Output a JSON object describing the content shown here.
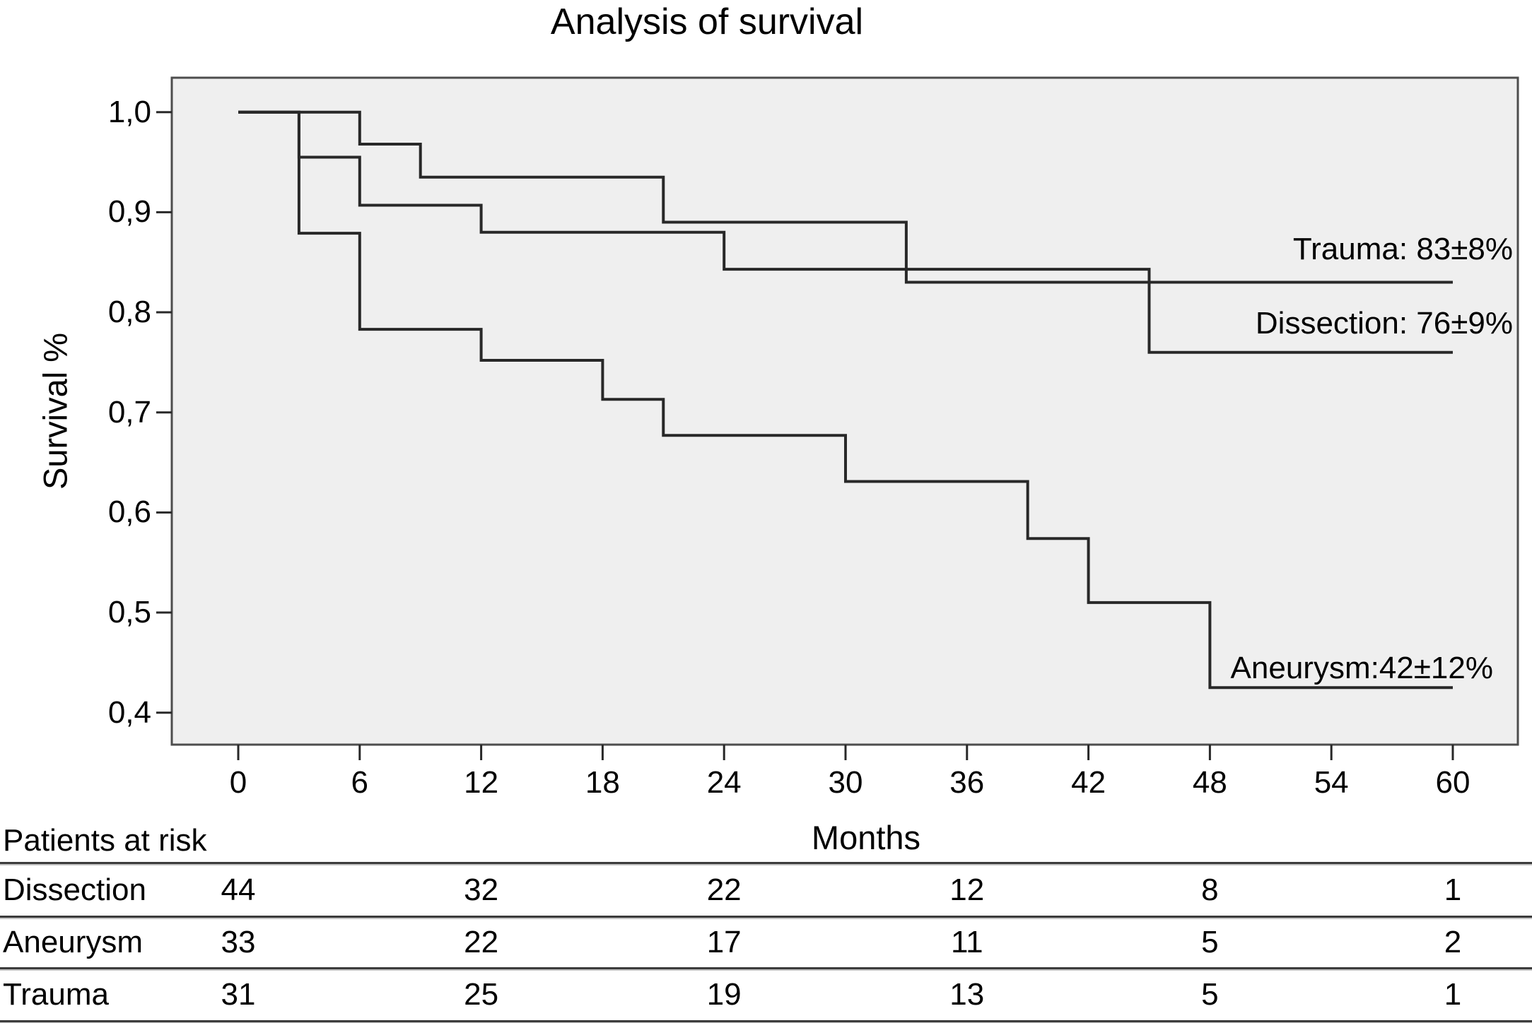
{
  "figure": {
    "title": "Analysis of survival"
  },
  "chart_data": {
    "type": "line",
    "variant": "kaplan_meier_step",
    "title": "Analysis of survival",
    "xlabel": "Months",
    "ylabel": "Survival %",
    "x_ticks": [
      0,
      6,
      12,
      18,
      24,
      30,
      36,
      42,
      48,
      54,
      60
    ],
    "y_tick_labels": [
      "1,0",
      "0,9",
      "0,8",
      "0,7",
      "0,6",
      "0,5",
      "0,4"
    ],
    "y_tick_values": [
      1.0,
      0.9,
      0.8,
      0.7,
      0.6,
      0.5,
      0.4
    ],
    "xlim": [
      -3.3,
      63.2
    ],
    "ylim": [
      0.366,
      1.034
    ],
    "grid": false,
    "legend_position": "inline-right-annotations",
    "series": [
      {
        "name": "Trauma",
        "annotation": "Trauma: 83±8%",
        "steps": [
          [
            0,
            1.0
          ],
          [
            6,
            0.968
          ],
          [
            9,
            0.935
          ],
          [
            21,
            0.89
          ],
          [
            33,
            0.83
          ]
        ],
        "end_month": 60,
        "final_value": 0.83
      },
      {
        "name": "Dissection",
        "annotation": "Dissection: 76±9%",
        "steps": [
          [
            0,
            1.0
          ],
          [
            3,
            0.955
          ],
          [
            6,
            0.907
          ],
          [
            12,
            0.88
          ],
          [
            24,
            0.843
          ],
          [
            45,
            0.76
          ]
        ],
        "end_month": 60,
        "final_value": 0.76
      },
      {
        "name": "Aneurysm",
        "annotation": "Aneurysm:42±12%",
        "steps": [
          [
            0,
            1.0
          ],
          [
            3,
            0.879
          ],
          [
            6,
            0.783
          ],
          [
            12,
            0.752
          ],
          [
            18,
            0.713
          ],
          [
            21,
            0.677
          ],
          [
            30,
            0.631
          ],
          [
            39,
            0.574
          ],
          [
            42,
            0.51
          ],
          [
            48,
            0.425
          ]
        ],
        "end_month": 60,
        "final_value": 0.425
      }
    ]
  },
  "risk_table": {
    "heading": "Patients at risk",
    "months": [
      0,
      12,
      24,
      36,
      48,
      60
    ],
    "rows": [
      {
        "label": "Dissection",
        "values": [
          "44",
          "32",
          "22",
          "12",
          "8",
          "1"
        ]
      },
      {
        "label": "Aneurysm",
        "values": [
          "33",
          "22",
          "17",
          "11",
          "5",
          "2"
        ]
      },
      {
        "label": "Trauma",
        "values": [
          "31",
          "25",
          "19",
          "13",
          "5",
          "1"
        ]
      }
    ]
  },
  "colors": {
    "plot_background": "#efefef",
    "curve": "#282828",
    "plot_border": "#4d4d4d",
    "text": "#000000"
  }
}
